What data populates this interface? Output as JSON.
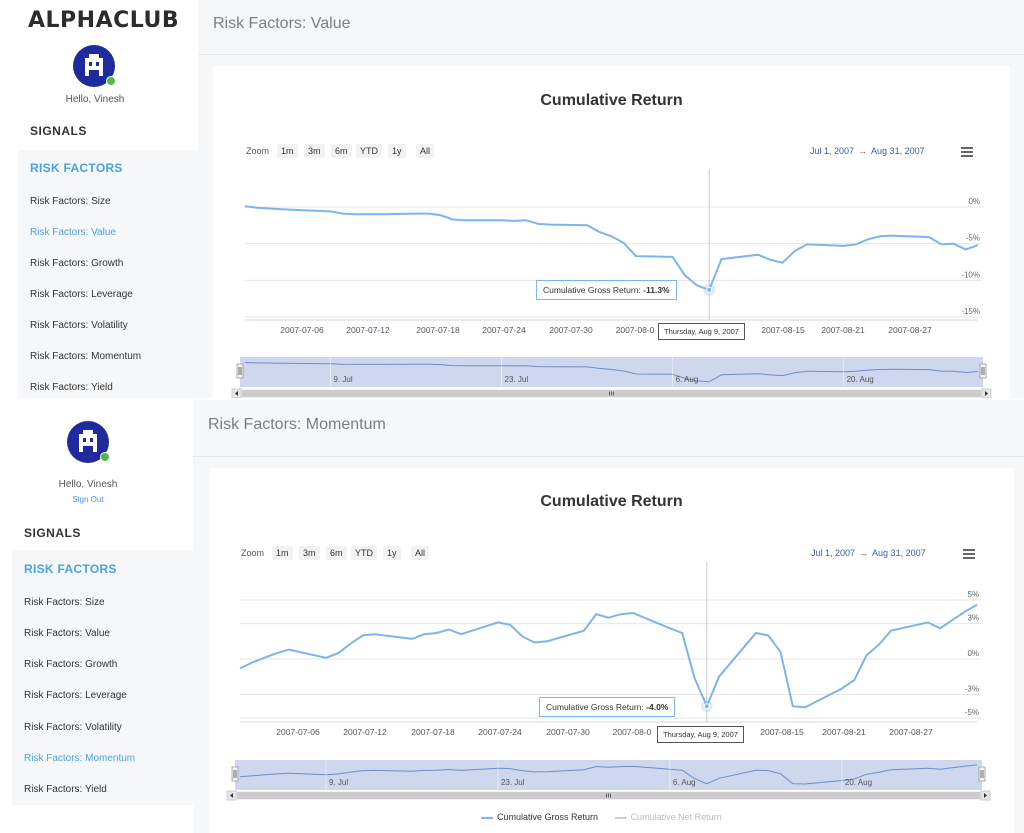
{
  "app": {
    "logo": "ALPHACLUB"
  },
  "user": {
    "greeting": "Hello, Vinesh",
    "sign_out": "Sign Out"
  },
  "sidebar": {
    "signals_label": "SIGNALS",
    "risk_factors_label": "RISK FACTORS",
    "items": [
      "Risk Factors: Size",
      "Risk Factors: Value",
      "Risk Factors: Growth",
      "Risk Factors: Leverage",
      "Risk Factors: Volatility",
      "Risk Factors: Momentum",
      "Risk Factors: Yield"
    ]
  },
  "zoom": {
    "label": "Zoom",
    "buttons": [
      "1m",
      "3m",
      "6m",
      "YTD",
      "1y",
      "All"
    ]
  },
  "range": {
    "from": "Jul 1, 2007",
    "arrow": "→",
    "to": "Aug 31, 2007"
  },
  "legend": {
    "gross": "Cumulative Gross Return",
    "net": "Cumulative Net Return"
  },
  "colors": {
    "line": "#7cb5ec",
    "navigator_fill": "#c5d0ea",
    "accent": "#4aa3df",
    "range_text": "#335cad"
  },
  "panels": [
    {
      "page_title": "Risk Factors: Value",
      "active_item": "Risk Factors: Value",
      "chart_title": "Cumulative Return",
      "tooltip_label": "Cumulative Gross Return: ",
      "tooltip_value": "-11.3%",
      "crosshair_label": "Thursday, Aug 9, 2007",
      "x_tick_labels": [
        "2007-07-06",
        "2007-07-12",
        "2007-07-18",
        "2007-07-24",
        "2007-07-30",
        "2007-08-0",
        "2007-08-15",
        "2007-08-21",
        "2007-08-27"
      ],
      "navigator_labels": [
        "9. Jul",
        "23. Jul",
        "6. Aug",
        "20. Aug"
      ]
    },
    {
      "page_title": "Risk Factors: Momentum",
      "active_item": "Risk Factors: Momentum",
      "chart_title": "Cumulative Return",
      "tooltip_label": "Cumulative Gross Return: ",
      "tooltip_value": "-4.0%",
      "crosshair_label": "Thursday, Aug 9, 2007",
      "x_tick_labels": [
        "2007-07-06",
        "2007-07-12",
        "2007-07-18",
        "2007-07-24",
        "2007-07-30",
        "2007-08-0",
        "2007-08-15",
        "2007-08-21",
        "2007-08-27"
      ],
      "navigator_labels": [
        "9. Jul",
        "23. Jul",
        "6. Aug",
        "20. Aug"
      ]
    }
  ],
  "chart_data": [
    {
      "type": "line",
      "title": "Cumulative Return",
      "xlabel": "",
      "ylabel": "",
      "y_tick_labels": [
        "0%",
        "-5%",
        "-10%",
        "-15%"
      ],
      "ylim": [
        -15,
        5
      ],
      "series": [
        {
          "name": "Cumulative Gross Return",
          "x": [
            "2007-07-02",
            "2007-07-03",
            "2007-07-05",
            "2007-07-06",
            "2007-07-09",
            "2007-07-10",
            "2007-07-11",
            "2007-07-12",
            "2007-07-13",
            "2007-07-16",
            "2007-07-17",
            "2007-07-18",
            "2007-07-19",
            "2007-07-20",
            "2007-07-23",
            "2007-07-24",
            "2007-07-25",
            "2007-07-26",
            "2007-07-27",
            "2007-07-30",
            "2007-07-31",
            "2007-08-01",
            "2007-08-02",
            "2007-08-03",
            "2007-08-06",
            "2007-08-07",
            "2007-08-08",
            "2007-08-09",
            "2007-08-10",
            "2007-08-13",
            "2007-08-14",
            "2007-08-15",
            "2007-08-16",
            "2007-08-17",
            "2007-08-20",
            "2007-08-21",
            "2007-08-22",
            "2007-08-23",
            "2007-08-24",
            "2007-08-27",
            "2007-08-28",
            "2007-08-29",
            "2007-08-30",
            "2007-08-31"
          ],
          "y": [
            0.1,
            -0.1,
            -0.3,
            -0.4,
            -0.6,
            -0.9,
            -1.0,
            -1.0,
            -1.0,
            -0.9,
            -0.9,
            -1.1,
            -1.7,
            -1.8,
            -1.8,
            -1.9,
            -1.8,
            -2.3,
            -2.4,
            -2.5,
            -3.4,
            -4.0,
            -4.9,
            -6.7,
            -6.8,
            -9.3,
            -10.7,
            -11.3,
            -7.1,
            -6.5,
            -7.2,
            -7.6,
            -6.0,
            -5.1,
            -5.3,
            -5.1,
            -4.4,
            -4.0,
            -3.9,
            -4.1,
            -5.1,
            -5.0,
            -5.8,
            -5.2
          ]
        },
        {
          "name": "Cumulative Net Return",
          "x": [],
          "y": []
        }
      ]
    },
    {
      "type": "line",
      "title": "Cumulative Return",
      "xlabel": "",
      "ylabel": "",
      "y_tick_labels": [
        "5%",
        "3%",
        "0%",
        "-3%",
        "-5%"
      ],
      "ylim": [
        -5,
        5
      ],
      "series": [
        {
          "name": "Cumulative Gross Return",
          "x": [
            "2007-07-02",
            "2007-07-03",
            "2007-07-05",
            "2007-07-06",
            "2007-07-09",
            "2007-07-10",
            "2007-07-11",
            "2007-07-12",
            "2007-07-13",
            "2007-07-16",
            "2007-07-17",
            "2007-07-18",
            "2007-07-19",
            "2007-07-20",
            "2007-07-23",
            "2007-07-24",
            "2007-07-25",
            "2007-07-26",
            "2007-07-27",
            "2007-07-30",
            "2007-07-31",
            "2007-08-01",
            "2007-08-02",
            "2007-08-03",
            "2007-08-06",
            "2007-08-07",
            "2007-08-08",
            "2007-08-09",
            "2007-08-10",
            "2007-08-13",
            "2007-08-14",
            "2007-08-15",
            "2007-08-16",
            "2007-08-17",
            "2007-08-20",
            "2007-08-21",
            "2007-08-22",
            "2007-08-23",
            "2007-08-24",
            "2007-08-27",
            "2007-08-28",
            "2007-08-29",
            "2007-08-30",
            "2007-08-31"
          ],
          "y": [
            -0.8,
            -0.3,
            0.5,
            0.8,
            0.1,
            0.5,
            1.3,
            2.0,
            2.1,
            1.7,
            2.1,
            2.2,
            2.5,
            2.1,
            3.1,
            2.9,
            1.9,
            1.4,
            1.5,
            2.4,
            3.8,
            3.5,
            3.8,
            3.9,
            2.6,
            2.2,
            -1.6,
            -4.0,
            -1.5,
            2.2,
            2.0,
            0.6,
            -4.0,
            -4.1,
            -2.5,
            -1.8,
            0.3,
            1.2,
            2.4,
            3.1,
            2.6,
            3.3,
            4.0,
            4.6
          ]
        },
        {
          "name": "Cumulative Net Return",
          "x": [],
          "y": []
        }
      ]
    }
  ]
}
